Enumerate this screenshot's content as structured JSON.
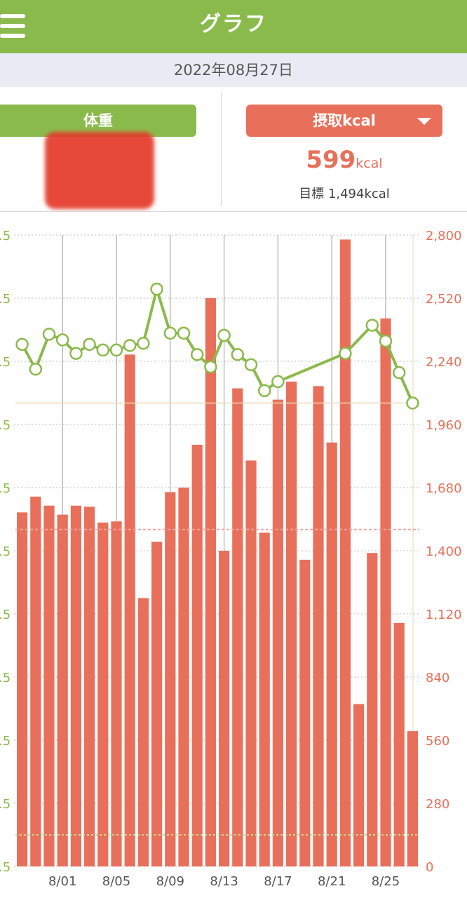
{
  "header": {
    "title": "グラフ"
  },
  "date": "2022年08月27日",
  "tabs": {
    "weight_label": "体重",
    "intake_label": "摂取kcal"
  },
  "intake": {
    "value": "599",
    "unit": "kcal",
    "goal_text": "目標 1,494kcal"
  },
  "colors": {
    "green": "#8bba4c",
    "red": "#e8705a",
    "date_bar": "#e8ebf3"
  },
  "icons": {
    "menu": "hamburger-menu-icon",
    "dropdown": "triangle-down-icon"
  },
  "chart_data": {
    "type": "bar",
    "x_tick_labels": [
      "8/01",
      "8/05",
      "8/09",
      "8/13",
      "8/17",
      "8/21",
      "8/25"
    ],
    "left_axis_tick_labels": [
      ".5",
      ".5",
      ".5",
      ".5",
      ".5",
      ".5",
      ".5",
      ".5",
      ".5",
      ".5",
      ".5"
    ],
    "right_axis_tick_labels": [
      "2,800",
      "2,520",
      "2,240",
      "1,960",
      "1,680",
      "1,400",
      "1,120",
      "840",
      "560",
      "280",
      "0"
    ],
    "ylim_right": [
      0,
      2800
    ],
    "bars_kcal": [
      1570,
      1640,
      1600,
      1560,
      1600,
      1595,
      1525,
      1530,
      2270,
      1190,
      1440,
      1660,
      1680,
      1870,
      2520,
      1400,
      2120,
      1800,
      1480,
      2070,
      2150,
      1360,
      2130,
      1880,
      2780,
      720,
      1390,
      2430,
      1080,
      600
    ],
    "goal_kcal": 1494,
    "weight_line_kcal_scale": [
      2315,
      2205,
      2360,
      2335,
      2275,
      2315,
      2290,
      2290,
      2310,
      2320,
      2560,
      2365,
      2365,
      2270,
      2215,
      2355,
      2270,
      2225,
      2110,
      2150,
      2275,
      2400,
      2330,
      2190,
      2055
    ],
    "weight_line_day_index": [
      0,
      1,
      2,
      3,
      4,
      5,
      6,
      7,
      8,
      9,
      10,
      11,
      12,
      13,
      14,
      15,
      16,
      17,
      18,
      19,
      24,
      26,
      27,
      28,
      29
    ],
    "weight_goal_line_kcal_scale": 2055,
    "lower_reference_kcal_scale": 140,
    "grid": true
  }
}
